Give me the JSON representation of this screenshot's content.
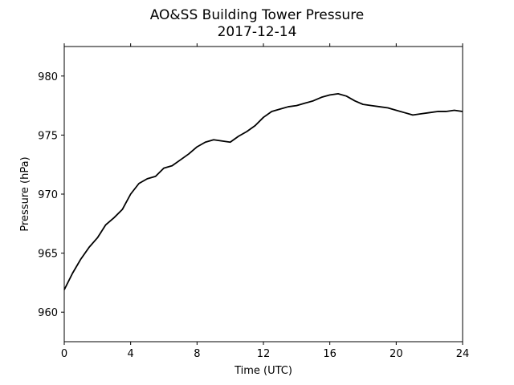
{
  "chart_data": {
    "type": "line",
    "title": "AO&SS Building Tower Pressure",
    "subtitle": "2017-12-14",
    "xlabel": "Time (UTC)",
    "ylabel": "Pressure (hPa)",
    "xlim": [
      0,
      24
    ],
    "ylim": [
      957.5,
      982.5
    ],
    "xticks": [
      0,
      4,
      8,
      12,
      16,
      20,
      24
    ],
    "yticks": [
      960,
      965,
      970,
      975,
      980
    ],
    "grid": false,
    "legend": "none",
    "series": [
      {
        "color": "#000000",
        "x": [
          0,
          0.5,
          1,
          1.5,
          2,
          2.5,
          3,
          3.5,
          4,
          4.5,
          5,
          5.5,
          6,
          6.5,
          7,
          7.5,
          8,
          8.5,
          9,
          9.5,
          10,
          10.5,
          11,
          11.5,
          12,
          12.5,
          13,
          13.5,
          14,
          14.5,
          15,
          15.5,
          16,
          16.5,
          17,
          17.5,
          18,
          18.5,
          19,
          19.5,
          20,
          20.5,
          21,
          21.5,
          22,
          22.5,
          23,
          23.5,
          24
        ],
        "values": [
          961.9,
          963.3,
          964.5,
          965.5,
          966.3,
          967.4,
          968.0,
          968.7,
          970.0,
          970.9,
          971.3,
          971.5,
          972.2,
          972.4,
          972.9,
          973.4,
          974.0,
          974.4,
          974.6,
          974.5,
          974.4,
          974.9,
          975.3,
          975.8,
          976.5,
          977.0,
          977.2,
          977.4,
          977.5,
          977.7,
          977.9,
          978.2,
          978.4,
          978.5,
          978.3,
          977.9,
          977.6,
          977.5,
          977.4,
          977.3,
          977.1,
          976.9,
          976.7,
          976.8,
          976.9,
          977.0,
          977.0,
          977.1,
          977.0
        ]
      }
    ]
  }
}
